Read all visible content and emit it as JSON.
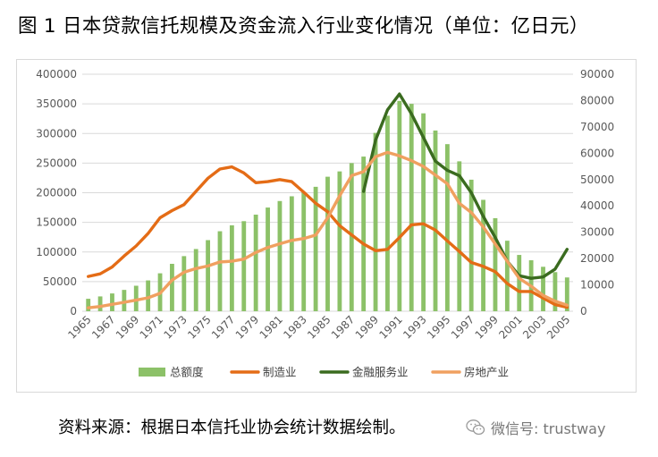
{
  "title": "图 1 日本贷款信托规模及资金流入行业变化情况（单位：亿日元）",
  "source_note": "资料来源：根据日本信托业协会统计数据绘制。",
  "watermark": {
    "icon": "wechat-icon",
    "text": "微信号: trustway"
  },
  "colors": {
    "total": "#8cc168",
    "manufacturing": "#e46c16",
    "finance": "#3a6b1f",
    "real_estate": "#f0a060",
    "grid": "#d9d9d9",
    "tick": "#595959"
  },
  "chart_data": {
    "type": "bar+line",
    "title": "图 1 日本贷款信托规模及资金流入行业变化情况（单位：亿日元）",
    "x": [
      1965,
      1966,
      1967,
      1968,
      1969,
      1970,
      1971,
      1972,
      1973,
      1974,
      1975,
      1976,
      1977,
      1978,
      1979,
      1980,
      1981,
      1982,
      1983,
      1984,
      1985,
      1986,
      1987,
      1988,
      1989,
      1990,
      1991,
      1992,
      1993,
      1994,
      1995,
      1996,
      1997,
      1998,
      1999,
      2000,
      2001,
      2002,
      2003,
      2004,
      2005
    ],
    "x_tick_labels": [
      "1965",
      "1967",
      "1969",
      "1971",
      "1973",
      "1975",
      "1977",
      "1979",
      "1981",
      "1983",
      "1985",
      "1987",
      "1989",
      "1991",
      "1993",
      "1995",
      "1997",
      "1999",
      "2001",
      "2003",
      "2005"
    ],
    "y_left": {
      "min": 0,
      "max": 400000,
      "ticks": [
        "0",
        "50000",
        "100000",
        "150000",
        "200000",
        "250000",
        "300000",
        "350000",
        "400000"
      ]
    },
    "y_right": {
      "min": 0,
      "max": 90000,
      "ticks": [
        "0",
        "10000",
        "20000",
        "30000",
        "40000",
        "50000",
        "60000",
        "70000",
        "80000",
        "90000"
      ]
    },
    "series": [
      {
        "name": "总额度",
        "kind": "bar",
        "axis": "left",
        "values": [
          21000,
          25000,
          30000,
          36000,
          43000,
          52000,
          64000,
          80000,
          93000,
          105000,
          120000,
          135000,
          145000,
          152000,
          163000,
          175000,
          186000,
          194000,
          201000,
          210000,
          227000,
          236000,
          250000,
          261000,
          301000,
          330000,
          355000,
          350000,
          334000,
          305000,
          282000,
          253000,
          222000,
          188000,
          157000,
          119000,
          95000,
          86000,
          75000,
          66000,
          57000
        ]
      },
      {
        "name": "制造业",
        "kind": "line",
        "axis": "right",
        "values": [
          13200,
          14200,
          16800,
          21000,
          24800,
          29500,
          35500,
          38200,
          40500,
          45500,
          50500,
          54000,
          54800,
          52500,
          48800,
          49200,
          50000,
          49200,
          45200,
          41000,
          37800,
          32500,
          29000,
          25500,
          23000,
          23500,
          28000,
          32800,
          33200,
          30800,
          26700,
          22700,
          18500,
          17000,
          15000,
          10500,
          7500,
          7500,
          5000,
          2500,
          1500
        ]
      },
      {
        "name": "金融服务业",
        "kind": "line",
        "axis": "right",
        "values": [
          null,
          null,
          null,
          null,
          null,
          null,
          null,
          null,
          null,
          null,
          null,
          null,
          null,
          null,
          null,
          null,
          null,
          null,
          null,
          null,
          null,
          null,
          null,
          45500,
          65000,
          76500,
          82500,
          75000,
          66000,
          57000,
          53500,
          51500,
          45000,
          36000,
          28000,
          19000,
          13500,
          12500,
          13000,
          16000,
          23500
        ]
      },
      {
        "name": "房地产业",
        "kind": "line",
        "axis": "right",
        "values": [
          1300,
          1800,
          2600,
          3400,
          4200,
          5100,
          6800,
          11800,
          14800,
          16200,
          17200,
          18700,
          19000,
          19800,
          22300,
          24200,
          25600,
          26900,
          27600,
          28900,
          35500,
          43800,
          51500,
          53000,
          58700,
          60300,
          59000,
          57200,
          55000,
          51700,
          48400,
          41000,
          37500,
          32000,
          25500,
          19000,
          12500,
          9500,
          6000,
          3800,
          2300
        ]
      }
    ],
    "legend": [
      "总额度",
      "制造业",
      "金融服务业",
      "房地产业"
    ],
    "legend_position": "bottom",
    "grid": true
  }
}
